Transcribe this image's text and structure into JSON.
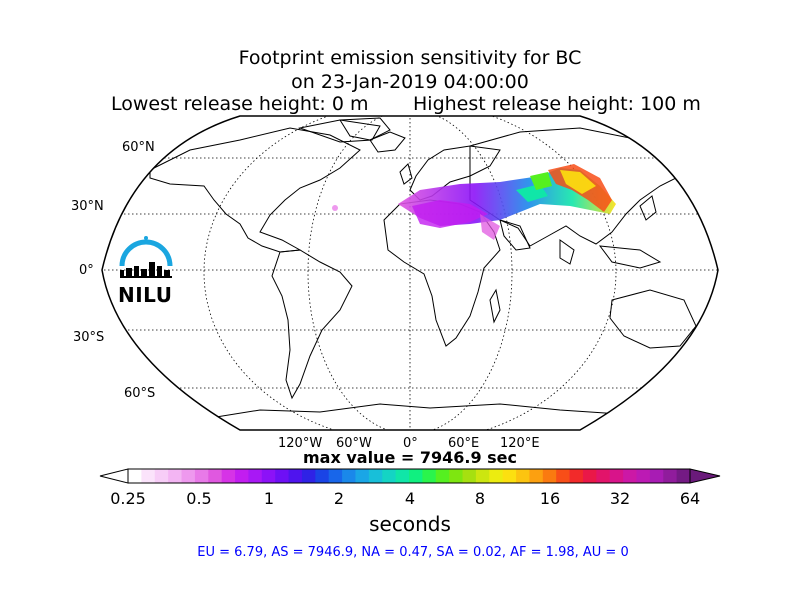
{
  "title": {
    "line1": "Footprint emission sensitivity for BC",
    "line2": "on 23-Jan-2019 04:00:00",
    "lowest": "Lowest release height: 0 m",
    "highest": "Highest release height: 100 m"
  },
  "map": {
    "lat_labels": [
      "60°N",
      "30°N",
      "0°",
      "30°S",
      "60°S"
    ],
    "lon_labels": [
      "120°W",
      "60°W",
      "0°",
      "60°E",
      "120°E"
    ],
    "max_value": "max value = 7946.9 sec"
  },
  "colorbar": {
    "ticks": [
      "0.25",
      "0.5",
      "1",
      "2",
      "4",
      "8",
      "16",
      "32",
      "64"
    ],
    "units": "seconds",
    "colors": [
      "#ffffff",
      "#fbe3fb",
      "#f7cdf7",
      "#f3b5f3",
      "#ee99ee",
      "#e87ae8",
      "#e058e0",
      "#d633e6",
      "#c21df0",
      "#a818f5",
      "#8c12f7",
      "#6e10f5",
      "#4f14ee",
      "#2f22e6",
      "#1a44e6",
      "#1866ea",
      "#1a88ea",
      "#1aa6e6",
      "#18bfd9",
      "#14d4c4",
      "#10e6a8",
      "#10f080",
      "#2af44c",
      "#55f020",
      "#7ee610",
      "#a6e010",
      "#cce610",
      "#ecec10",
      "#fce010",
      "#fcc410",
      "#fca010",
      "#fa7a10",
      "#f84e18",
      "#f22a2a",
      "#ea1848",
      "#e2146a",
      "#d8148a",
      "#cc18a6",
      "#bc1ab4",
      "#a81cb4",
      "#901c9c",
      "#741a84"
    ]
  },
  "regions_line": "EU = 6.79,  AS = 7946.9,  NA = 0.47,  SA = 0.02,  AF = 1.98,  AU = 0",
  "logo": {
    "text": "NILU",
    "color": "#1aa6e0"
  }
}
